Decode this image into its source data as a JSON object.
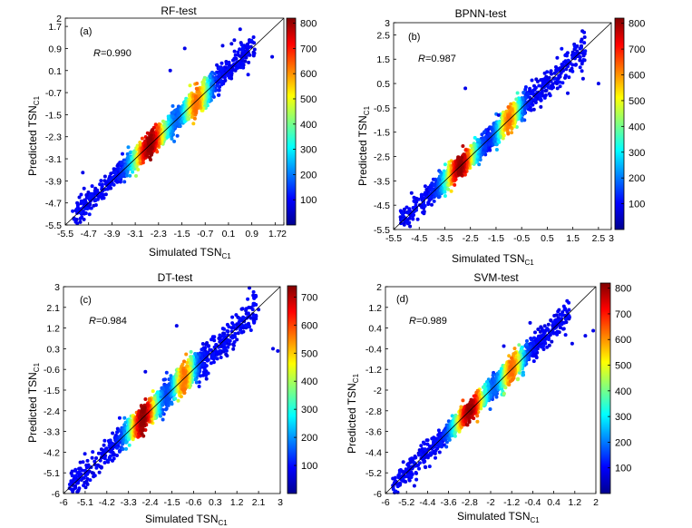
{
  "figure": {
    "xlabel": {
      "main": "Simulated TSN",
      "sub": "C1"
    },
    "ylabel": {
      "main": "Predicted TSN",
      "sub": "C1"
    }
  },
  "chart_data": [
    {
      "type": "scatter",
      "title": "RF-test",
      "panel_label": "(a)",
      "r_label": "R",
      "r_value": "=0.990",
      "xlim": [
        -5.5,
        2
      ],
      "ylim": [
        -5.5,
        2
      ],
      "xticks": [
        "-5.5",
        "-4.7",
        "-3.9",
        "-3.1",
        "-2.3",
        "-1.5",
        "-0.7",
        "0.1",
        "0.9",
        "1.7",
        "2"
      ],
      "yticks": [
        "-5.5",
        "-4.7",
        "-3.9",
        "-3.1",
        "-2.3",
        "-1.5",
        "-0.7",
        "0.1",
        "0.9",
        "1.7",
        "2"
      ],
      "colorbar_ticks": [
        "100",
        "200",
        "300",
        "400",
        "500",
        "600",
        "700",
        "800"
      ],
      "colorbar_max": 820,
      "density_peaks": [
        -2.6,
        -1.0
      ],
      "spread": 0.18,
      "outliers": [
        [
          -1.4,
          0.9
        ],
        [
          0.5,
          1.6
        ],
        [
          0.3,
          1.2
        ],
        [
          -0.3,
          0.3
        ],
        [
          1.6,
          0.6
        ],
        [
          -4.9,
          -3.6
        ],
        [
          -1.9,
          0.1
        ],
        [
          -0.1,
          1.0
        ]
      ]
    },
    {
      "type": "scatter",
      "title": "BPNN-test",
      "panel_label": "(b)",
      "r_label": "R",
      "r_value": "=0.987",
      "xlim": [
        -5.5,
        3
      ],
      "ylim": [
        -5.5,
        3
      ],
      "xticks": [
        "-5.5",
        "-4.5",
        "-3.5",
        "-2.5",
        "-1.5",
        "-0.5",
        "0.5",
        "1.5",
        "2.5",
        "3"
      ],
      "yticks": [
        "-5.5",
        "-4.5",
        "-3.5",
        "-2.5",
        "-1.5",
        "-0.5",
        "0.5",
        "1.5",
        "2.5",
        "3"
      ],
      "colorbar_ticks": [
        "100",
        "200",
        "300",
        "400",
        "500",
        "600",
        "700",
        "800"
      ],
      "colorbar_max": 820,
      "density_peaks": [
        -2.9,
        -1.0
      ],
      "spread": 0.2,
      "outliers": [
        [
          -2.7,
          0.3
        ],
        [
          2.5,
          0.5
        ],
        [
          1.9,
          0.7
        ],
        [
          1.3,
          0.1
        ],
        [
          0.9,
          0.3
        ],
        [
          -1.4,
          -0.8
        ],
        [
          -4.8,
          -4.0
        ]
      ]
    },
    {
      "type": "scatter",
      "title": "DT-test",
      "panel_label": "(c)",
      "r_label": "R",
      "r_value": "=0.984",
      "xlim": [
        -6,
        3
      ],
      "ylim": [
        -6,
        3
      ],
      "xticks": [
        "-6",
        "-5.1",
        "-4.2",
        "-3.3",
        "-2.4",
        "-1.5",
        "-0.6",
        "0.3",
        "1.2",
        "2.1",
        "3"
      ],
      "yticks": [
        "-6",
        "-5.1",
        "-4.2",
        "-3.3",
        "-2.4",
        "-1.5",
        "-0.6",
        "0.3",
        "1.2",
        "2.1",
        "3"
      ],
      "colorbar_ticks": [
        "100",
        "200",
        "300",
        "400",
        "500",
        "600",
        "700"
      ],
      "colorbar_max": 740,
      "density_peaks": [
        -2.7,
        -1.0
      ],
      "spread": 0.24,
      "outliers": [
        [
          2.9,
          0.2
        ],
        [
          2.7,
          0.3
        ],
        [
          2.1,
          2.0
        ],
        [
          1.9,
          1.6
        ],
        [
          -1.3,
          1.3
        ],
        [
          -2.6,
          -0.7
        ],
        [
          -5.4,
          -5.9
        ],
        [
          -5.0,
          -5.6
        ]
      ]
    },
    {
      "type": "scatter",
      "title": "SVM-test",
      "panel_label": "(d)",
      "r_label": "R",
      "r_value": "=0.989",
      "xlim": [
        -6,
        2
      ],
      "ylim": [
        -6,
        2
      ],
      "xticks": [
        "-6",
        "-5.2",
        "-4.4",
        "-3.6",
        "-2.8",
        "-2",
        "-1.2",
        "-0.4",
        "0.4",
        "1.2",
        "2"
      ],
      "yticks": [
        "-6",
        "-5.2",
        "-4.4",
        "-3.6",
        "-2.8",
        "-2",
        "-1.2",
        "-0.4",
        "0.4",
        "1.2",
        "2"
      ],
      "colorbar_ticks": [
        "100",
        "200",
        "300",
        "400",
        "500",
        "600",
        "700",
        "800"
      ],
      "colorbar_max": 820,
      "density_peaks": [
        -2.8,
        -1.2
      ],
      "spread": 0.18,
      "outliers": [
        [
          1.9,
          0.3
        ],
        [
          1.6,
          0.1
        ],
        [
          1.1,
          -0.2
        ],
        [
          -0.5,
          0.6
        ],
        [
          -4.9,
          -5.7
        ],
        [
          -1.5,
          -0.3
        ],
        [
          0.6,
          1.1
        ]
      ]
    }
  ]
}
